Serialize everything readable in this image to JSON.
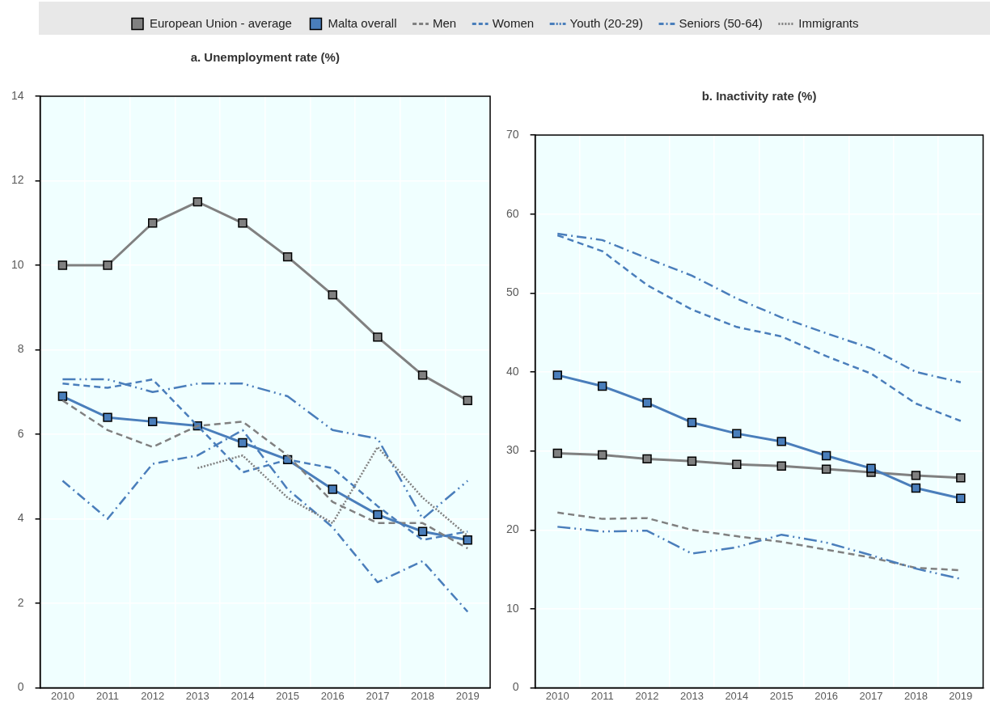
{
  "chart_data": [
    {
      "type": "line",
      "title": "a. Unemployment rate (%)",
      "categories": [
        "2010",
        "2011",
        "2012",
        "2013",
        "2014",
        "2015",
        "2016",
        "2017",
        "2018",
        "2019"
      ],
      "ylim": [
        0,
        14
      ],
      "yticks": [
        0,
        2,
        4,
        6,
        8,
        10,
        12,
        14
      ],
      "grid": true,
      "legend": "top",
      "series": [
        {
          "name": "European Union - average",
          "color": "#808080",
          "marker": "square",
          "line_style": "solid",
          "values": [
            10,
            10,
            11,
            11.5,
            11,
            10.2,
            9.3,
            8.3,
            7.4,
            6.8
          ]
        },
        {
          "name": "Malta overall",
          "color": "#4a7ebb",
          "marker": "square",
          "line_style": "solid",
          "values": [
            6.9,
            6.4,
            6.3,
            6.2,
            5.8,
            5.4,
            4.7,
            4.1,
            3.7,
            3.5
          ]
        },
        {
          "name": "Men",
          "color": "#808080",
          "marker": "none",
          "line_style": "dashed",
          "values": [
            6.8,
            6.1,
            5.7,
            6.2,
            6.3,
            5.5,
            4.4,
            3.9,
            3.9,
            3.3
          ]
        },
        {
          "name": "Women",
          "color": "#4a7ebb",
          "marker": "none",
          "line_style": "dashed",
          "values": [
            7.2,
            7.1,
            7.3,
            6.2,
            5.1,
            5.4,
            5.2,
            4.3,
            3.5,
            3.7
          ]
        },
        {
          "name": "Youth (20-29)",
          "color": "#4a7ebb",
          "marker": "none",
          "line_style": "dashdotdot",
          "values": [
            7.3,
            7.3,
            7.0,
            7.2,
            7.2,
            6.9,
            6.1,
            5.9,
            4.0,
            4.9
          ]
        },
        {
          "name": "Seniors (50-64)",
          "color": "#4a7ebb",
          "marker": "none",
          "line_style": "dashdot",
          "values": [
            4.9,
            4.0,
            5.3,
            5.5,
            6.1,
            4.7,
            3.8,
            2.5,
            3.0,
            1.8
          ]
        },
        {
          "name": "Immigrants",
          "color": "#808080",
          "marker": "none",
          "line_style": "dotted",
          "values": [
            null,
            null,
            null,
            5.2,
            5.5,
            4.5,
            3.9,
            5.7,
            4.5,
            3.6
          ]
        }
      ]
    },
    {
      "type": "line",
      "title": "b. Inactivity rate (%)",
      "categories": [
        "2010",
        "2011",
        "2012",
        "2013",
        "2014",
        "2015",
        "2016",
        "2017",
        "2018",
        "2019"
      ],
      "ylim": [
        0,
        70
      ],
      "yticks": [
        0,
        10,
        20,
        30,
        40,
        50,
        60,
        70
      ],
      "grid": true,
      "series": [
        {
          "color": "#808080",
          "marker": "square",
          "line_style": "solid",
          "values": [
            29.7,
            29.5,
            29.0,
            28.7,
            28.3,
            28.1,
            27.7,
            27.3,
            26.9,
            26.6
          ]
        },
        {
          "color": "#4a7ebb",
          "marker": "square",
          "line_style": "solid",
          "values": [
            39.6,
            38.2,
            36.1,
            33.6,
            32.2,
            31.2,
            29.4,
            27.8,
            25.3,
            24.0
          ]
        },
        {
          "color": "#808080",
          "marker": "none",
          "line_style": "dashed",
          "values": [
            22.2,
            21.4,
            21.5,
            20.0,
            19.2,
            18.5,
            17.5,
            16.5,
            15.2,
            14.9
          ]
        },
        {
          "color": "#4a7ebb",
          "marker": "none",
          "line_style": "dashed",
          "values": [
            57.3,
            55.3,
            51.0,
            47.9,
            45.7,
            44.5,
            42.0,
            39.8,
            36.0,
            33.8
          ]
        },
        {
          "color": "#4a7ebb",
          "marker": "none",
          "line_style": "dashdotdot",
          "values": [
            20.4,
            19.8,
            19.9,
            17.0,
            17.8,
            19.4,
            18.4,
            16.8,
            15.1,
            13.8
          ]
        },
        {
          "color": "#4a7ebb",
          "marker": "none",
          "line_style": "dashdot",
          "values": [
            57.5,
            56.7,
            54.4,
            52.2,
            49.3,
            46.9,
            44.9,
            43.0,
            40.0,
            38.7
          ]
        }
      ]
    }
  ]
}
